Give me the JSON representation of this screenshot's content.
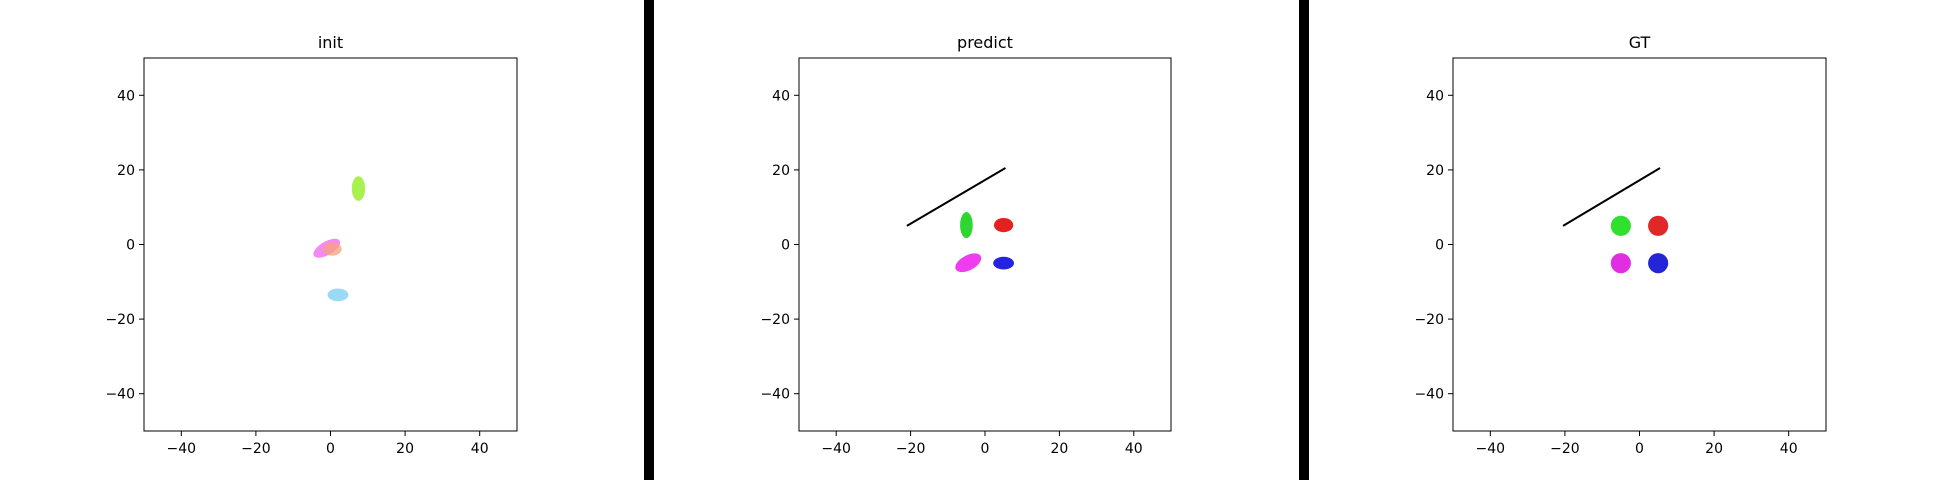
{
  "chart_data": [
    {
      "type": "scatter",
      "title": "init",
      "xlabel": "",
      "ylabel": "",
      "xlim": [
        -50,
        50
      ],
      "ylim": [
        -50,
        50
      ],
      "xticks": [
        -40,
        -20,
        0,
        20,
        40
      ],
      "yticks": [
        -40,
        -20,
        0,
        20,
        40
      ],
      "grid": false,
      "lines": [],
      "ellipses": [
        {
          "cx": 7.5,
          "cy": 15,
          "rx": 1.8,
          "ry": 3.3,
          "angle": 0,
          "color": "#9ef03c",
          "opacity": 0.9
        },
        {
          "cx": -1,
          "cy": -1,
          "rx": 4,
          "ry": 1.8,
          "angle": 30,
          "color": "#f36cf0",
          "opacity": 0.8
        },
        {
          "cx": 0.5,
          "cy": -1.2,
          "rx": 2.5,
          "ry": 1.8,
          "angle": 0,
          "color": "#f4a27a",
          "opacity": 0.75
        },
        {
          "cx": 2,
          "cy": -13.5,
          "rx": 2.8,
          "ry": 1.7,
          "angle": 0,
          "color": "#93d8f4",
          "opacity": 0.95
        }
      ]
    },
    {
      "type": "scatter",
      "title": "predict",
      "xlabel": "",
      "ylabel": "",
      "xlim": [
        -50,
        50
      ],
      "ylim": [
        -50,
        50
      ],
      "xticks": [
        -40,
        -20,
        0,
        20,
        40
      ],
      "yticks": [
        -40,
        -20,
        0,
        20,
        40
      ],
      "grid": false,
      "lines": [
        {
          "x": [
            -21,
            5.5
          ],
          "y": [
            5,
            20.5
          ],
          "color": "#000000"
        }
      ],
      "ellipses": [
        {
          "cx": -5,
          "cy": 5.2,
          "rx": 1.7,
          "ry": 3.5,
          "angle": 0,
          "color": "#2fd62f",
          "opacity": 1
        },
        {
          "cx": 5,
          "cy": 5.2,
          "rx": 2.6,
          "ry": 1.9,
          "angle": 0,
          "color": "#e61f1f",
          "opacity": 1
        },
        {
          "cx": -4.5,
          "cy": -4.9,
          "rx": 3.8,
          "ry": 2,
          "angle": 28,
          "color": "#f03cf0",
          "opacity": 1
        },
        {
          "cx": 5,
          "cy": -5,
          "rx": 2.8,
          "ry": 1.7,
          "angle": 0,
          "color": "#2323e0",
          "opacity": 1
        }
      ]
    },
    {
      "type": "scatter",
      "title": "GT",
      "xlabel": "",
      "ylabel": "",
      "xlim": [
        -50,
        50
      ],
      "ylim": [
        -50,
        50
      ],
      "xticks": [
        -40,
        -20,
        0,
        20,
        40
      ],
      "yticks": [
        -40,
        -20,
        0,
        20,
        40
      ],
      "grid": false,
      "lines": [
        {
          "x": [
            -20.5,
            5.5
          ],
          "y": [
            5,
            20.5
          ],
          "color": "#000000"
        }
      ],
      "ellipses": [
        {
          "cx": -5,
          "cy": 5,
          "rx": 2.7,
          "ry": 2.7,
          "angle": 0,
          "color": "#2fe02f",
          "opacity": 1
        },
        {
          "cx": 5,
          "cy": 5,
          "rx": 2.7,
          "ry": 2.7,
          "angle": 0,
          "color": "#e02828",
          "opacity": 1
        },
        {
          "cx": -5,
          "cy": -5,
          "rx": 2.7,
          "ry": 2.7,
          "angle": 0,
          "color": "#e02ee0",
          "opacity": 1
        },
        {
          "cx": 5,
          "cy": -5,
          "rx": 2.7,
          "ry": 2.7,
          "angle": 0,
          "color": "#2525d8",
          "opacity": 1
        }
      ]
    }
  ],
  "divider_color": "#000000"
}
